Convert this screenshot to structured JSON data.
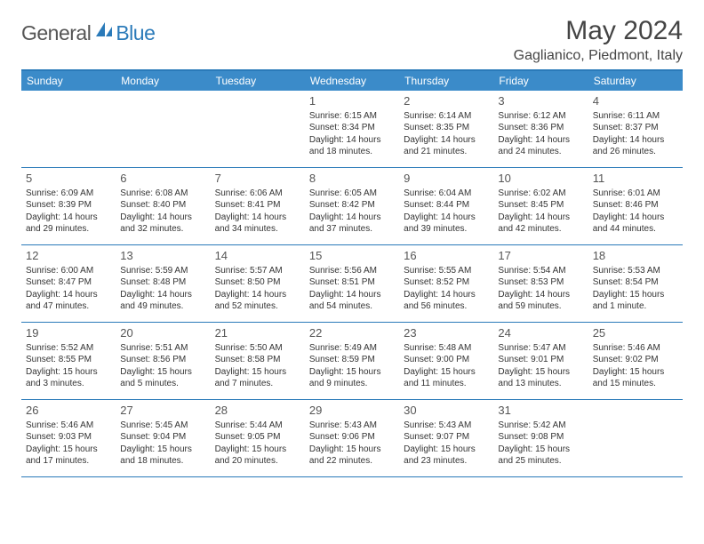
{
  "logo": {
    "general": "General",
    "blue": "Blue"
  },
  "title": "May 2024",
  "location": "Gaglianico, Piedmont, Italy",
  "weekdays": [
    "Sunday",
    "Monday",
    "Tuesday",
    "Wednesday",
    "Thursday",
    "Friday",
    "Saturday"
  ],
  "colors": {
    "accent": "#2a7ab9",
    "header_bg": "#3b8bc9"
  },
  "weeks": [
    [
      {
        "empty": true
      },
      {
        "empty": true
      },
      {
        "empty": true
      },
      {
        "num": "1",
        "sunrise": "Sunrise: 6:15 AM",
        "sunset": "Sunset: 8:34 PM",
        "day1": "Daylight: 14 hours",
        "day2": "and 18 minutes."
      },
      {
        "num": "2",
        "sunrise": "Sunrise: 6:14 AM",
        "sunset": "Sunset: 8:35 PM",
        "day1": "Daylight: 14 hours",
        "day2": "and 21 minutes."
      },
      {
        "num": "3",
        "sunrise": "Sunrise: 6:12 AM",
        "sunset": "Sunset: 8:36 PM",
        "day1": "Daylight: 14 hours",
        "day2": "and 24 minutes."
      },
      {
        "num": "4",
        "sunrise": "Sunrise: 6:11 AM",
        "sunset": "Sunset: 8:37 PM",
        "day1": "Daylight: 14 hours",
        "day2": "and 26 minutes."
      }
    ],
    [
      {
        "num": "5",
        "sunrise": "Sunrise: 6:09 AM",
        "sunset": "Sunset: 8:39 PM",
        "day1": "Daylight: 14 hours",
        "day2": "and 29 minutes."
      },
      {
        "num": "6",
        "sunrise": "Sunrise: 6:08 AM",
        "sunset": "Sunset: 8:40 PM",
        "day1": "Daylight: 14 hours",
        "day2": "and 32 minutes."
      },
      {
        "num": "7",
        "sunrise": "Sunrise: 6:06 AM",
        "sunset": "Sunset: 8:41 PM",
        "day1": "Daylight: 14 hours",
        "day2": "and 34 minutes."
      },
      {
        "num": "8",
        "sunrise": "Sunrise: 6:05 AM",
        "sunset": "Sunset: 8:42 PM",
        "day1": "Daylight: 14 hours",
        "day2": "and 37 minutes."
      },
      {
        "num": "9",
        "sunrise": "Sunrise: 6:04 AM",
        "sunset": "Sunset: 8:44 PM",
        "day1": "Daylight: 14 hours",
        "day2": "and 39 minutes."
      },
      {
        "num": "10",
        "sunrise": "Sunrise: 6:02 AM",
        "sunset": "Sunset: 8:45 PM",
        "day1": "Daylight: 14 hours",
        "day2": "and 42 minutes."
      },
      {
        "num": "11",
        "sunrise": "Sunrise: 6:01 AM",
        "sunset": "Sunset: 8:46 PM",
        "day1": "Daylight: 14 hours",
        "day2": "and 44 minutes."
      }
    ],
    [
      {
        "num": "12",
        "sunrise": "Sunrise: 6:00 AM",
        "sunset": "Sunset: 8:47 PM",
        "day1": "Daylight: 14 hours",
        "day2": "and 47 minutes."
      },
      {
        "num": "13",
        "sunrise": "Sunrise: 5:59 AM",
        "sunset": "Sunset: 8:48 PM",
        "day1": "Daylight: 14 hours",
        "day2": "and 49 minutes."
      },
      {
        "num": "14",
        "sunrise": "Sunrise: 5:57 AM",
        "sunset": "Sunset: 8:50 PM",
        "day1": "Daylight: 14 hours",
        "day2": "and 52 minutes."
      },
      {
        "num": "15",
        "sunrise": "Sunrise: 5:56 AM",
        "sunset": "Sunset: 8:51 PM",
        "day1": "Daylight: 14 hours",
        "day2": "and 54 minutes."
      },
      {
        "num": "16",
        "sunrise": "Sunrise: 5:55 AM",
        "sunset": "Sunset: 8:52 PM",
        "day1": "Daylight: 14 hours",
        "day2": "and 56 minutes."
      },
      {
        "num": "17",
        "sunrise": "Sunrise: 5:54 AM",
        "sunset": "Sunset: 8:53 PM",
        "day1": "Daylight: 14 hours",
        "day2": "and 59 minutes."
      },
      {
        "num": "18",
        "sunrise": "Sunrise: 5:53 AM",
        "sunset": "Sunset: 8:54 PM",
        "day1": "Daylight: 15 hours",
        "day2": "and 1 minute."
      }
    ],
    [
      {
        "num": "19",
        "sunrise": "Sunrise: 5:52 AM",
        "sunset": "Sunset: 8:55 PM",
        "day1": "Daylight: 15 hours",
        "day2": "and 3 minutes."
      },
      {
        "num": "20",
        "sunrise": "Sunrise: 5:51 AM",
        "sunset": "Sunset: 8:56 PM",
        "day1": "Daylight: 15 hours",
        "day2": "and 5 minutes."
      },
      {
        "num": "21",
        "sunrise": "Sunrise: 5:50 AM",
        "sunset": "Sunset: 8:58 PM",
        "day1": "Daylight: 15 hours",
        "day2": "and 7 minutes."
      },
      {
        "num": "22",
        "sunrise": "Sunrise: 5:49 AM",
        "sunset": "Sunset: 8:59 PM",
        "day1": "Daylight: 15 hours",
        "day2": "and 9 minutes."
      },
      {
        "num": "23",
        "sunrise": "Sunrise: 5:48 AM",
        "sunset": "Sunset: 9:00 PM",
        "day1": "Daylight: 15 hours",
        "day2": "and 11 minutes."
      },
      {
        "num": "24",
        "sunrise": "Sunrise: 5:47 AM",
        "sunset": "Sunset: 9:01 PM",
        "day1": "Daylight: 15 hours",
        "day2": "and 13 minutes."
      },
      {
        "num": "25",
        "sunrise": "Sunrise: 5:46 AM",
        "sunset": "Sunset: 9:02 PM",
        "day1": "Daylight: 15 hours",
        "day2": "and 15 minutes."
      }
    ],
    [
      {
        "num": "26",
        "sunrise": "Sunrise: 5:46 AM",
        "sunset": "Sunset: 9:03 PM",
        "day1": "Daylight: 15 hours",
        "day2": "and 17 minutes."
      },
      {
        "num": "27",
        "sunrise": "Sunrise: 5:45 AM",
        "sunset": "Sunset: 9:04 PM",
        "day1": "Daylight: 15 hours",
        "day2": "and 18 minutes."
      },
      {
        "num": "28",
        "sunrise": "Sunrise: 5:44 AM",
        "sunset": "Sunset: 9:05 PM",
        "day1": "Daylight: 15 hours",
        "day2": "and 20 minutes."
      },
      {
        "num": "29",
        "sunrise": "Sunrise: 5:43 AM",
        "sunset": "Sunset: 9:06 PM",
        "day1": "Daylight: 15 hours",
        "day2": "and 22 minutes."
      },
      {
        "num": "30",
        "sunrise": "Sunrise: 5:43 AM",
        "sunset": "Sunset: 9:07 PM",
        "day1": "Daylight: 15 hours",
        "day2": "and 23 minutes."
      },
      {
        "num": "31",
        "sunrise": "Sunrise: 5:42 AM",
        "sunset": "Sunset: 9:08 PM",
        "day1": "Daylight: 15 hours",
        "day2": "and 25 minutes."
      },
      {
        "empty": true
      }
    ]
  ]
}
